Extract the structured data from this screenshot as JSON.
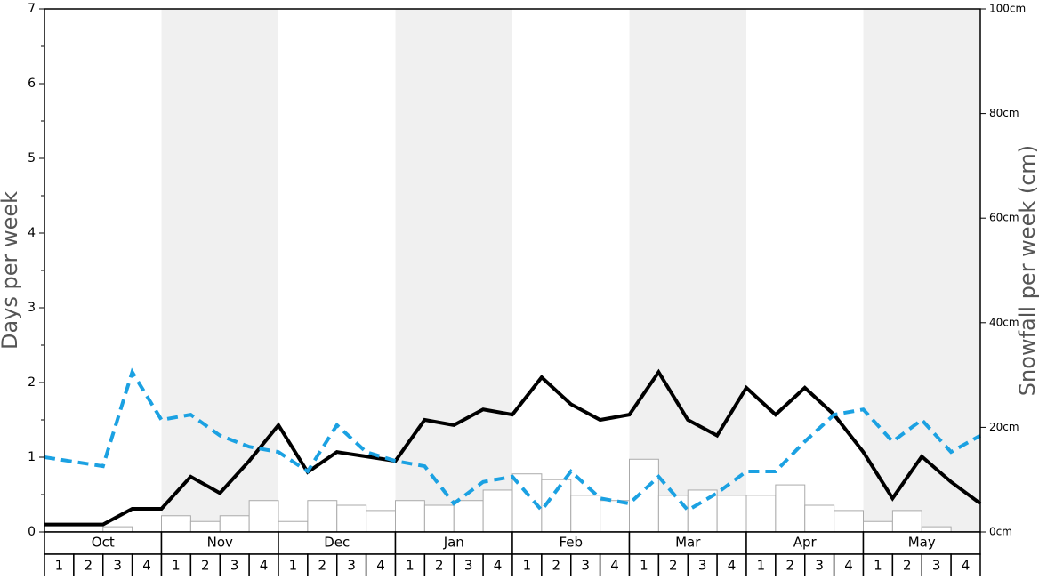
{
  "chart_data": {
    "type": "weekly-combo",
    "ylabel": "Days per week",
    "y2label": "Snowfall per week (cm)",
    "ylim": [
      0,
      7
    ],
    "yticks": [
      0,
      1,
      2,
      3,
      4,
      5,
      6,
      7
    ],
    "yminorticks": [
      0.5,
      1.5,
      2.5,
      3.5,
      4.5,
      5.5,
      6.5
    ],
    "y2lim": [
      0,
      100
    ],
    "y2ticks": [
      {
        "value": 0,
        "label": "0cm"
      },
      {
        "value": 20,
        "label": "20cm"
      },
      {
        "value": 40,
        "label": "40cm"
      },
      {
        "value": 60,
        "label": "60cm"
      },
      {
        "value": 80,
        "label": "80cm"
      },
      {
        "value": 100,
        "label": "100cm"
      }
    ],
    "xlim": [
      0,
      32
    ],
    "months": [
      "Oct",
      "Nov",
      "Dec",
      "Jan",
      "Feb",
      "Mar",
      "Apr",
      "May"
    ],
    "shade_color": "#f0f0f0",
    "categories": [
      "1",
      "2",
      "3",
      "4",
      "1",
      "2",
      "3",
      "4",
      "1",
      "2",
      "3",
      "4",
      "1",
      "2",
      "3",
      "4",
      "1",
      "2",
      "3",
      "4",
      "1",
      "2",
      "3",
      "4",
      "1",
      "2",
      "3",
      "4",
      "1",
      "2",
      "3",
      "4"
    ],
    "bars": {
      "axis": "y2",
      "color": "#ffffff",
      "edge": "#aaaaaa",
      "values": [
        0,
        0,
        1.0,
        0,
        3.1,
        2.0,
        3.1,
        6.0,
        2.0,
        6.0,
        5.1,
        4.1,
        6.0,
        5.1,
        6.0,
        8.0,
        11.1,
        10.0,
        7.0,
        6.0,
        13.9,
        7.0,
        8.0,
        7.0,
        7.0,
        9.0,
        5.1,
        4.1,
        2.0,
        4.1,
        1.0,
        0
      ]
    },
    "series": [
      {
        "color": "#000000",
        "dash": false,
        "x": [
          0,
          1,
          2,
          3,
          4,
          5,
          6,
          7,
          8,
          9,
          10,
          11,
          12,
          13,
          14,
          15,
          16,
          17,
          18,
          19,
          20,
          21,
          22,
          23,
          24,
          25,
          26,
          27,
          28,
          29,
          30,
          31,
          32
        ],
        "values": [
          0.1,
          0.1,
          0.1,
          0.31,
          0.31,
          0.74,
          0.52,
          0.95,
          1.43,
          0.8,
          1.07,
          1.01,
          0.95,
          1.5,
          1.43,
          1.64,
          1.57,
          2.07,
          1.71,
          1.5,
          1.57,
          2.14,
          1.5,
          1.29,
          1.93,
          1.57,
          1.93,
          1.57,
          1.07,
          0.45,
          1.01,
          0.67,
          0.38
        ]
      },
      {
        "color": "#1ba1e2",
        "dash": true,
        "x": [
          0,
          1,
          2,
          3,
          4,
          5,
          6,
          7,
          8,
          9,
          10,
          11,
          12,
          13,
          14,
          15,
          16,
          17,
          18,
          19,
          20,
          21,
          22,
          23,
          24,
          25,
          26,
          27,
          28,
          29,
          30,
          31,
          32
        ],
        "values": [
          1.0,
          0.94,
          0.88,
          2.14,
          1.5,
          1.57,
          1.29,
          1.14,
          1.07,
          0.81,
          1.43,
          1.07,
          0.95,
          0.88,
          0.38,
          0.67,
          0.74,
          0.29,
          0.81,
          0.45,
          0.38,
          0.74,
          0.29,
          0.52,
          0.81,
          0.81,
          1.21,
          1.57,
          1.64,
          1.21,
          1.5,
          1.07,
          1.29
        ]
      }
    ]
  }
}
